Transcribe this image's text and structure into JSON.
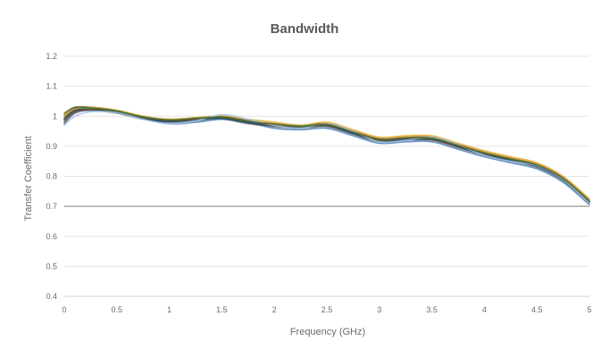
{
  "chart_data": {
    "type": "line",
    "title": "Bandwidth",
    "xlabel": "Frequency (GHz)",
    "ylabel": "Transfer Coefficient",
    "xlim": [
      0,
      5
    ],
    "ylim": [
      0.4,
      1.2
    ],
    "x_ticks": [
      "0",
      "0.5",
      "1",
      "1.5",
      "2",
      "2.5",
      "3",
      "3.5",
      "4",
      "4.5",
      "5"
    ],
    "y_ticks": [
      "0.4",
      "0.5",
      "0.6",
      "0.7",
      "0.8",
      "0.9",
      "1",
      "1.1",
      "1.2"
    ],
    "grid": "horizontal",
    "legend": "none",
    "reference_line": {
      "y": 0.7,
      "color": "#a6a6a6"
    },
    "x": [
      0,
      0.1,
      0.25,
      0.5,
      0.75,
      1,
      1.25,
      1.5,
      1.75,
      2,
      2.25,
      2.5,
      2.75,
      3,
      3.25,
      3.5,
      3.75,
      4,
      4.25,
      4.5,
      4.75,
      5
    ],
    "series": [
      {
        "color": "#2e5e8c",
        "values": [
          0.99,
          1.02,
          1.025,
          1.015,
          0.995,
          0.985,
          0.99,
          0.995,
          0.98,
          0.97,
          0.965,
          0.97,
          0.945,
          0.92,
          0.925,
          0.925,
          0.9,
          0.875,
          0.855,
          0.835,
          0.79,
          0.715
        ]
      },
      {
        "color": "#c5531c",
        "values": [
          1.0,
          1.025,
          1.03,
          1.02,
          1.0,
          0.99,
          0.995,
          1.0,
          0.985,
          0.975,
          0.97,
          0.975,
          0.95,
          0.925,
          0.93,
          0.93,
          0.905,
          0.88,
          0.86,
          0.84,
          0.795,
          0.72
        ]
      },
      {
        "color": "#8a8a8a",
        "values": [
          0.985,
          1.015,
          1.02,
          1.01,
          0.99,
          0.98,
          0.985,
          0.99,
          0.975,
          0.965,
          0.96,
          0.965,
          0.94,
          0.915,
          0.92,
          0.92,
          0.895,
          0.87,
          0.85,
          0.83,
          0.785,
          0.71
        ]
      },
      {
        "color": "#e3a81f",
        "values": [
          1.005,
          1.03,
          1.03,
          1.02,
          1.0,
          0.99,
          0.995,
          1.0,
          0.99,
          0.98,
          0.97,
          0.98,
          0.955,
          0.93,
          0.935,
          0.935,
          0.91,
          0.885,
          0.865,
          0.845,
          0.8,
          0.725
        ]
      },
      {
        "color": "#4f81bd",
        "values": [
          0.975,
          1.01,
          1.02,
          1.015,
          0.995,
          0.975,
          0.98,
          0.99,
          0.98,
          0.96,
          0.955,
          0.96,
          0.935,
          0.91,
          0.915,
          0.915,
          0.89,
          0.865,
          0.845,
          0.825,
          0.78,
          0.705
        ]
      },
      {
        "color": "#6aa84f",
        "values": [
          0.995,
          1.02,
          1.025,
          1.018,
          0.998,
          0.988,
          0.992,
          0.997,
          0.985,
          0.972,
          0.968,
          0.972,
          0.948,
          0.922,
          0.928,
          0.928,
          0.902,
          0.878,
          0.858,
          0.838,
          0.792,
          0.718
        ]
      },
      {
        "color": "#1f3f5f",
        "values": [
          0.99,
          1.018,
          1.022,
          1.012,
          0.992,
          0.982,
          0.988,
          0.993,
          0.978,
          0.968,
          0.962,
          0.968,
          0.942,
          0.918,
          0.922,
          0.922,
          0.898,
          0.872,
          0.852,
          0.832,
          0.788,
          0.712
        ]
      },
      {
        "color": "#7f4f2a",
        "values": [
          0.98,
          1.012,
          1.022,
          1.016,
          0.996,
          0.986,
          0.99,
          0.998,
          0.984,
          0.968,
          0.964,
          0.97,
          0.946,
          0.92,
          0.926,
          0.924,
          0.9,
          0.876,
          0.856,
          0.836,
          0.79,
          0.714
        ]
      },
      {
        "color": "#9dc3e6",
        "values": [
          0.97,
          1.0,
          1.015,
          1.012,
          0.99,
          0.975,
          0.985,
          1.005,
          0.99,
          0.97,
          0.96,
          0.975,
          0.95,
          0.915,
          0.92,
          0.93,
          0.905,
          0.87,
          0.85,
          0.835,
          0.79,
          0.71
        ]
      },
      {
        "color": "#3d6b3d",
        "values": [
          1.01,
          1.03,
          1.028,
          1.017,
          0.997,
          0.987,
          0.993,
          0.996,
          0.982,
          0.974,
          0.966,
          0.973,
          0.947,
          0.924,
          0.927,
          0.927,
          0.903,
          0.877,
          0.857,
          0.837,
          0.793,
          0.717
        ]
      }
    ]
  }
}
